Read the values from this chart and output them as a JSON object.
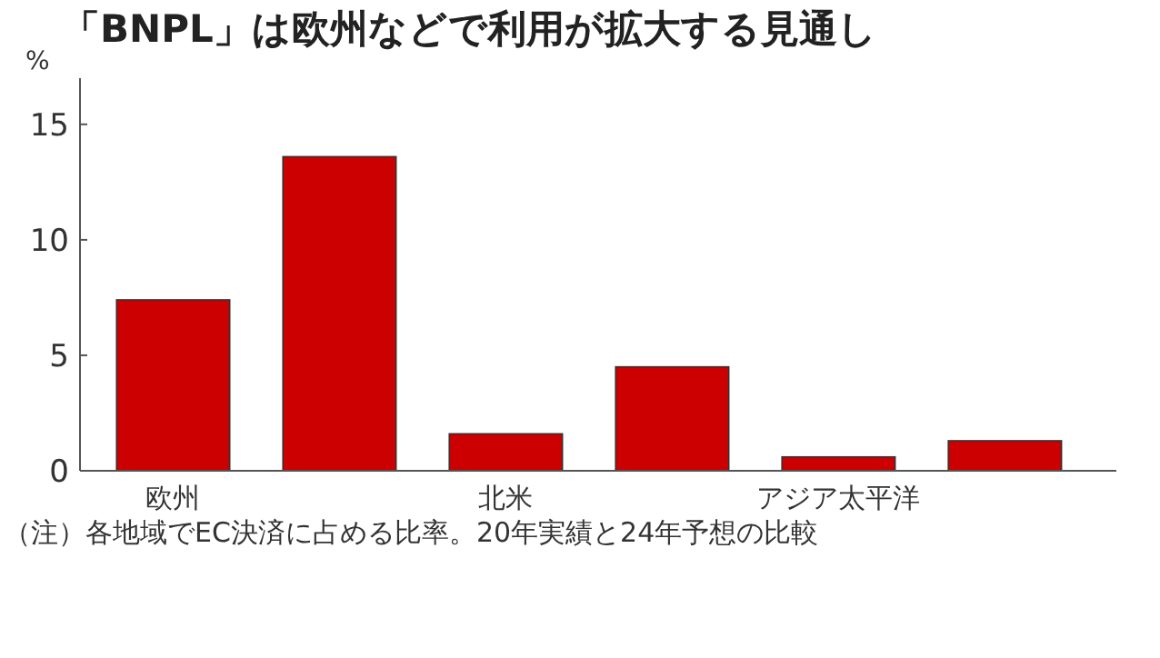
{
  "chart_data": {
    "type": "bar",
    "title": "「BNPL」は欧州などで利用が拡大する見通し",
    "ylabel": "%",
    "categories": [
      "欧州",
      null,
      "北米",
      null,
      "アジア太平洋",
      null
    ],
    "values": [
      7.4,
      13.6,
      1.6,
      4.5,
      0.6,
      1.3
    ],
    "color": "#cc0000",
    "ylim": [
      0,
      17
    ],
    "yticks": [
      0,
      5,
      10,
      15
    ],
    "annotations": [
      "（注）各地域でEC決済に占める比率。20年実績と24年予想の比較"
    ]
  }
}
